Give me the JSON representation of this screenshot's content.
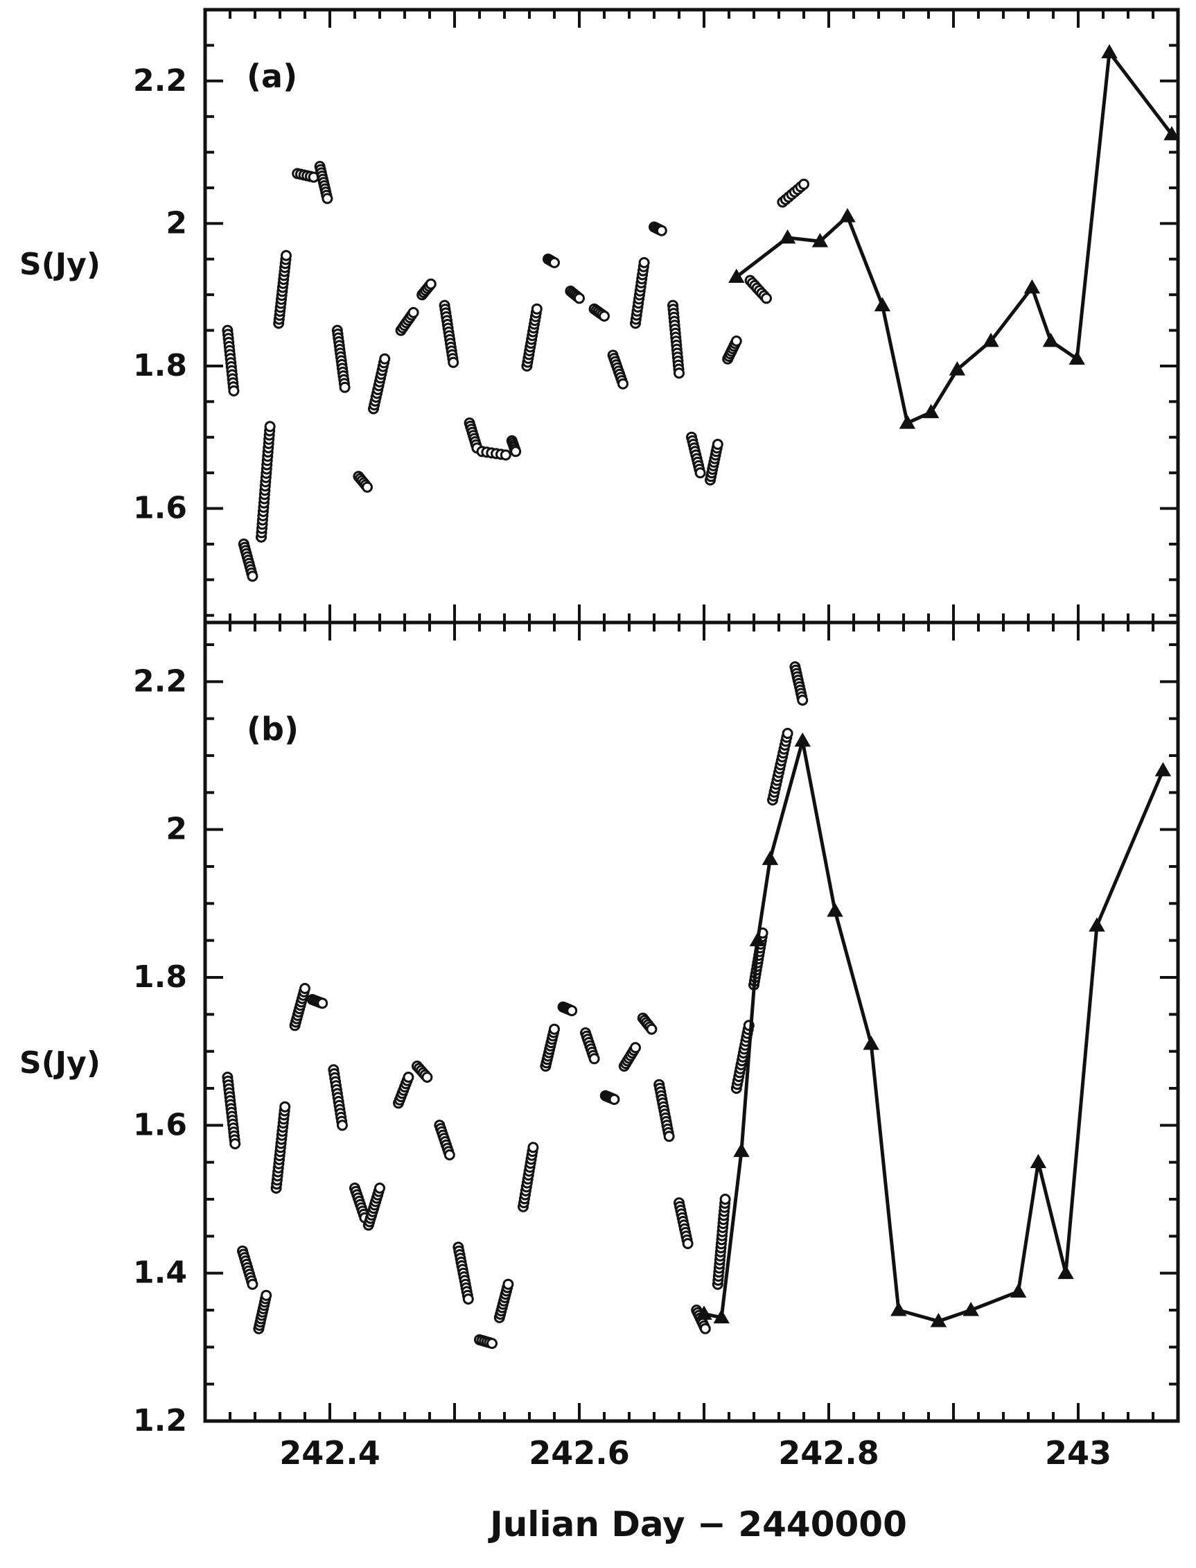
{
  "chart_data": [
    {
      "type": "scatter",
      "panel_label": "(a)",
      "ylabel": "S(Jy)",
      "xlabel": "",
      "xlim": [
        242.3,
        243.08
      ],
      "ylim": [
        1.44,
        2.3
      ],
      "y_ticks": [
        "1.6",
        "1.8",
        "2",
        "2.2"
      ],
      "x_ticks": [],
      "series": [
        {
          "marker": "open-circle",
          "groups": [
            [
              242.318,
              1.85,
              242.323,
              1.765
            ],
            [
              242.331,
              1.55,
              242.338,
              1.505
            ],
            [
              242.345,
              1.56,
              242.352,
              1.715
            ],
            [
              242.359,
              1.86,
              242.365,
              1.955
            ],
            [
              242.374,
              2.07,
              242.387,
              2.065
            ],
            [
              242.392,
              2.08,
              242.398,
              2.035
            ],
            [
              242.406,
              1.85,
              242.412,
              1.77
            ],
            [
              242.423,
              1.645,
              242.43,
              1.63
            ],
            [
              242.435,
              1.74,
              242.444,
              1.81
            ],
            [
              242.457,
              1.85,
              242.467,
              1.875
            ],
            [
              242.474,
              1.9,
              242.481,
              1.915
            ],
            [
              242.492,
              1.885,
              242.499,
              1.805
            ],
            [
              242.512,
              1.72,
              242.518,
              1.685
            ],
            [
              242.522,
              1.68,
              242.541,
              1.675
            ],
            [
              242.546,
              1.695,
              242.549,
              1.68
            ],
            [
              242.558,
              1.8,
              242.566,
              1.88
            ],
            [
              242.575,
              1.95,
              242.58,
              1.945
            ],
            [
              242.593,
              1.905,
              242.6,
              1.895
            ],
            [
              242.612,
              1.88,
              242.62,
              1.87
            ],
            [
              242.627,
              1.815,
              242.635,
              1.775
            ],
            [
              242.645,
              1.86,
              242.652,
              1.945
            ],
            [
              242.66,
              1.995,
              242.666,
              1.99
            ],
            [
              242.675,
              1.885,
              242.68,
              1.79
            ],
            [
              242.69,
              1.7,
              242.697,
              1.65
            ],
            [
              242.705,
              1.64,
              242.711,
              1.69
            ],
            [
              242.719,
              1.81,
              242.726,
              1.835
            ],
            [
              242.737,
              1.92,
              242.75,
              1.895
            ],
            [
              242.763,
              2.03,
              242.78,
              2.055
            ]
          ]
        },
        {
          "marker": "filled-triangle",
          "x": [
            242.726,
            242.767,
            242.793,
            242.815,
            242.843,
            242.863,
            242.882,
            242.903,
            242.93,
            242.963,
            242.978,
            242.999,
            243.025,
            243.075
          ],
          "y": [
            1.925,
            1.98,
            1.975,
            2.01,
            1.885,
            1.72,
            1.735,
            1.795,
            1.835,
            1.91,
            1.835,
            1.81,
            2.24,
            2.125
          ]
        }
      ]
    },
    {
      "type": "scatter",
      "panel_label": "(b)",
      "ylabel": "S(Jy)",
      "xlabel": "Julian Day − 2440000",
      "xlim": [
        242.3,
        243.08
      ],
      "ylim": [
        1.2,
        2.28
      ],
      "y_ticks": [
        "1.2",
        "1.4",
        "1.6",
        "1.8",
        "2",
        "2.2"
      ],
      "x_ticks": [
        "242.4",
        "242.6",
        "242.8",
        "243"
      ],
      "series": [
        {
          "marker": "open-circle",
          "groups": [
            [
              242.318,
              1.665,
              242.324,
              1.575
            ],
            [
              242.33,
              1.43,
              242.338,
              1.385
            ],
            [
              242.343,
              1.325,
              242.349,
              1.37
            ],
            [
              242.357,
              1.515,
              242.364,
              1.625
            ],
            [
              242.372,
              1.735,
              242.38,
              1.785
            ],
            [
              242.386,
              1.77,
              242.394,
              1.765
            ],
            [
              242.403,
              1.675,
              242.41,
              1.6
            ],
            [
              242.42,
              1.515,
              242.428,
              1.475
            ],
            [
              242.431,
              1.465,
              242.44,
              1.515
            ],
            [
              242.455,
              1.63,
              242.463,
              1.665
            ],
            [
              242.47,
              1.68,
              242.478,
              1.665
            ],
            [
              242.488,
              1.6,
              242.496,
              1.56
            ],
            [
              242.503,
              1.435,
              242.511,
              1.365
            ],
            [
              242.52,
              1.31,
              242.53,
              1.305
            ],
            [
              242.536,
              1.34,
              242.543,
              1.385
            ],
            [
              242.555,
              1.49,
              242.563,
              1.57
            ],
            [
              242.573,
              1.68,
              242.58,
              1.73
            ],
            [
              242.587,
              1.76,
              242.594,
              1.755
            ],
            [
              242.605,
              1.725,
              242.612,
              1.69
            ],
            [
              242.621,
              1.64,
              242.628,
              1.635
            ],
            [
              242.636,
              1.68,
              242.645,
              1.705
            ],
            [
              242.651,
              1.745,
              242.658,
              1.73
            ],
            [
              242.664,
              1.655,
              242.672,
              1.585
            ],
            [
              242.68,
              1.495,
              242.687,
              1.44
            ],
            [
              242.694,
              1.35,
              242.701,
              1.325
            ],
            [
              242.711,
              1.385,
              242.717,
              1.5
            ],
            [
              242.726,
              1.65,
              242.736,
              1.735
            ],
            [
              242.74,
              1.79,
              242.747,
              1.86
            ],
            [
              242.755,
              2.04,
              242.767,
              2.13
            ],
            [
              242.773,
              2.22,
              242.779,
              2.175
            ]
          ]
        },
        {
          "marker": "filled-triangle",
          "x": [
            242.7,
            242.714,
            242.73,
            242.743,
            242.753,
            242.779,
            242.805,
            242.834,
            242.856,
            242.888,
            242.914,
            242.952,
            242.968,
            242.99,
            243.015,
            243.068
          ],
          "y": [
            1.345,
            1.34,
            1.565,
            1.85,
            1.96,
            2.12,
            1.89,
            1.71,
            1.35,
            1.335,
            1.35,
            1.375,
            1.55,
            1.4,
            1.87,
            2.08
          ]
        }
      ]
    }
  ]
}
